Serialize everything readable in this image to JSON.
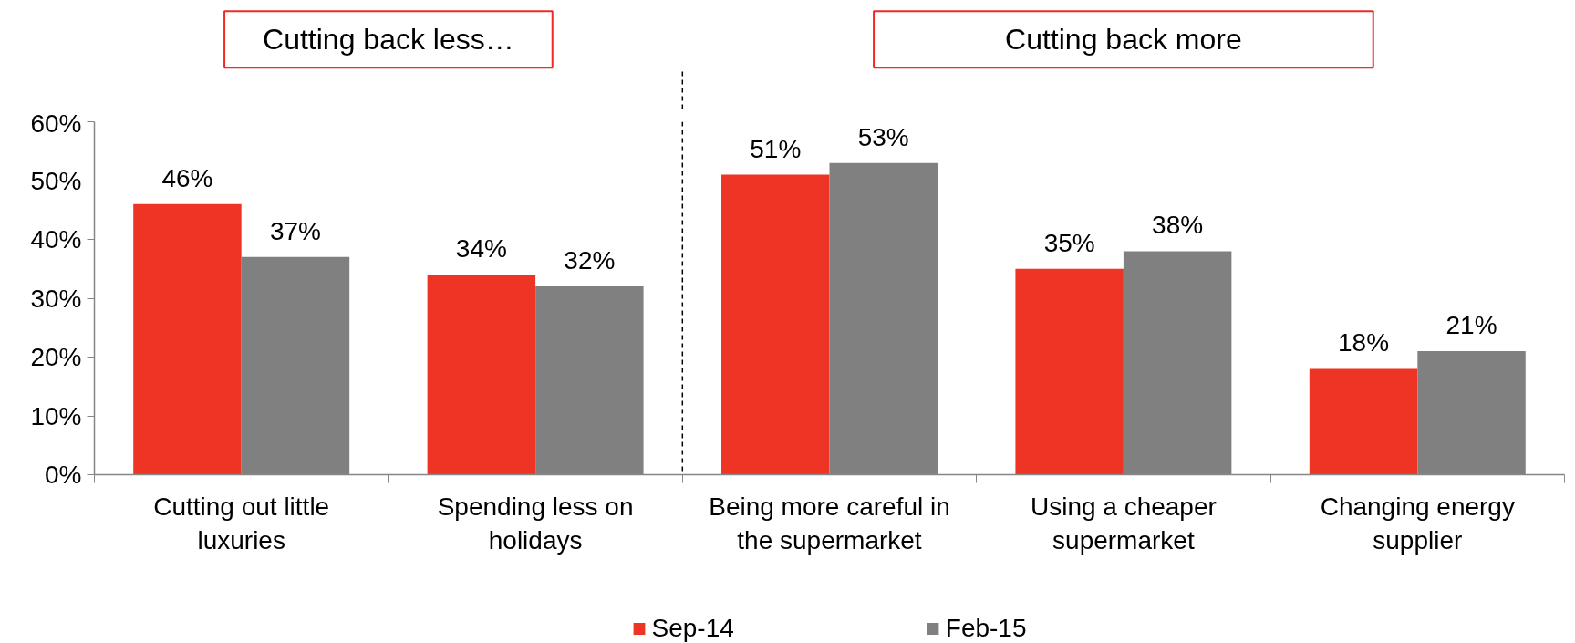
{
  "chart_data": {
    "type": "bar",
    "categories": [
      "Cutting out little luxuries",
      "Spending less on holidays",
      "Being more careful in the supermarket",
      "Using a cheaper supermarket",
      "Changing energy supplier"
    ],
    "series": [
      {
        "name": "Sep-14",
        "color": "#ee3424",
        "values": [
          46,
          34,
          51,
          35,
          18
        ],
        "value_labels": [
          "46%",
          "34%",
          "51%",
          "35%",
          "18%"
        ]
      },
      {
        "name": "Feb-15",
        "color": "#808080",
        "values": [
          37,
          32,
          53,
          38,
          21
        ],
        "value_labels": [
          "37%",
          "32%",
          "53%",
          "38%",
          "21%"
        ]
      }
    ],
    "ylim": [
      0,
      60
    ],
    "yticks": [
      {
        "value": 0,
        "label": "0%"
      },
      {
        "value": 10,
        "label": "10%"
      },
      {
        "value": 20,
        "label": "20%"
      },
      {
        "value": 30,
        "label": "30%"
      },
      {
        "value": 40,
        "label": "40%"
      },
      {
        "value": 50,
        "label": "50%"
      },
      {
        "value": 60,
        "label": "60%"
      }
    ],
    "legend": "bottom",
    "annotations": [
      "Cutting back less…",
      "Cutting back more"
    ]
  }
}
